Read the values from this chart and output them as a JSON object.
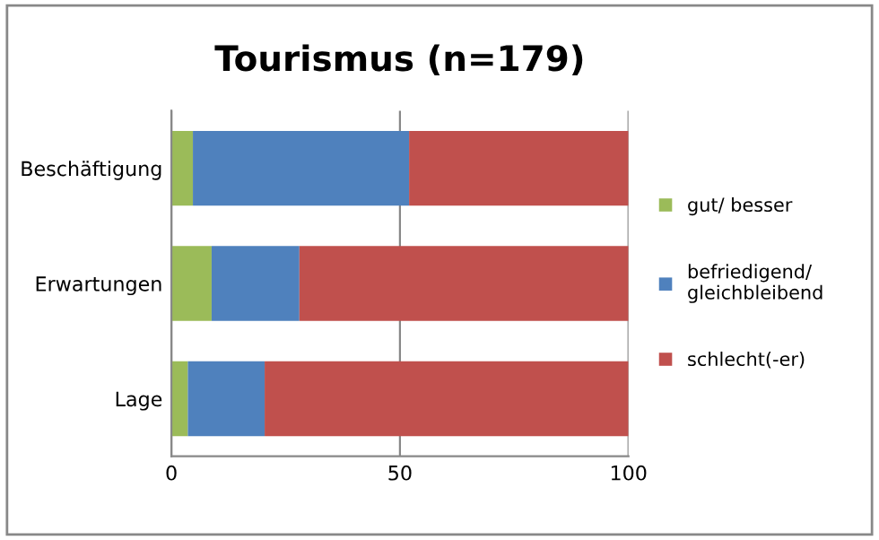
{
  "chart_data": {
    "type": "bar",
    "orientation": "horizontal",
    "stacked": true,
    "title": "Tourismus (n=179)",
    "categories": [
      "Beschäftigung",
      "Erwartungen",
      "Lage"
    ],
    "series": [
      {
        "name": "gut/ besser",
        "color": "#9bbb59",
        "values": [
          4.7,
          8.8,
          3.6
        ]
      },
      {
        "name": "befriedigend/\ngleichbleibend",
        "color": "#4f81bd",
        "values": [
          47.3,
          19.2,
          16.8
        ]
      },
      {
        "name": "schlecht(-er)",
        "color": "#c0504d",
        "values": [
          48.0,
          72.0,
          79.6
        ]
      }
    ],
    "xlim": [
      0,
      100
    ],
    "xticks": [
      0,
      50,
      100
    ],
    "grid": "x",
    "legend": "right"
  }
}
